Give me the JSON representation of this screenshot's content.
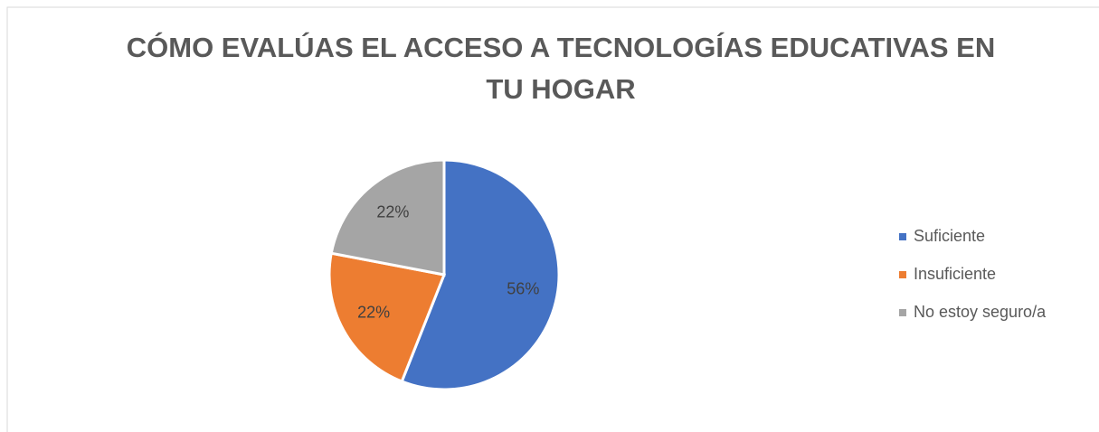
{
  "chart_data": {
    "type": "pie",
    "title": "CÓMO EVALÚAS EL ACCESO A TECNOLOGÍAS EDUCATIVAS EN TU HOGAR",
    "categories": [
      "Suficiente",
      "Insuficiente",
      "No estoy seguro/a"
    ],
    "values": [
      56,
      22,
      22
    ],
    "value_labels": [
      "56%",
      "22%",
      "22%"
    ],
    "colors": [
      "#4472c4",
      "#ed7d31",
      "#a5a5a5"
    ],
    "legend": "right"
  }
}
